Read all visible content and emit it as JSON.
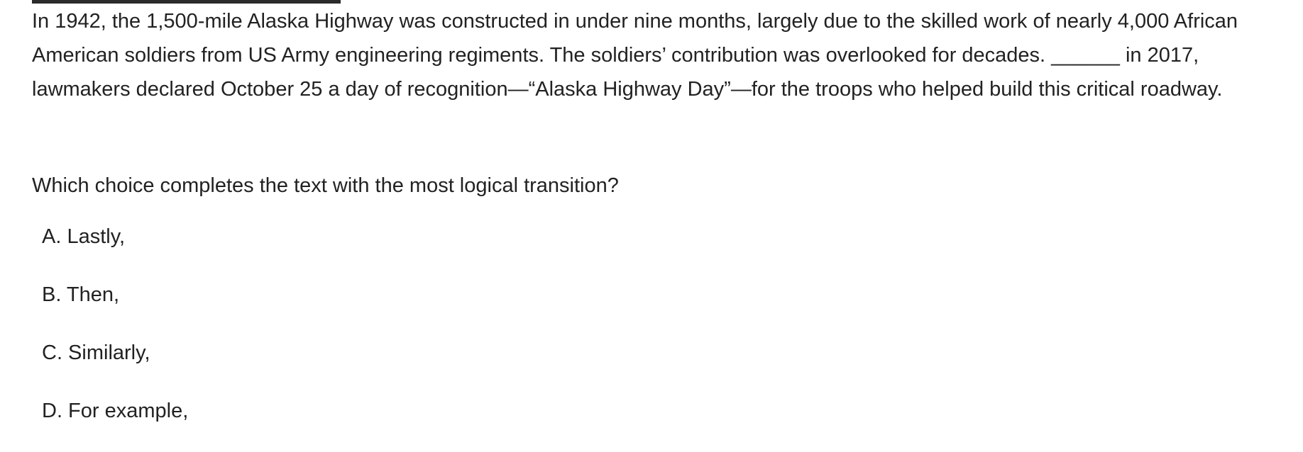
{
  "passage": {
    "text": "In 1942, the 1,500-mile Alaska Highway was constructed in under nine months, largely due to the skilled work of nearly 4,000 African American soldiers from US Army engineering regiments. The soldiers’ contribution was overlooked for decades. ______ in 2017, lawmakers declared October 25 a day of recognition—“Alaska Highway Day”—for the troops who helped build this critical roadway."
  },
  "question": {
    "text": "Which choice completes the text with the most logical transition?"
  },
  "choices": [
    {
      "label": "A. Lastly,"
    },
    {
      "label": "B. Then,"
    },
    {
      "label": "C. Similarly,"
    },
    {
      "label": "D. For example,"
    }
  ]
}
